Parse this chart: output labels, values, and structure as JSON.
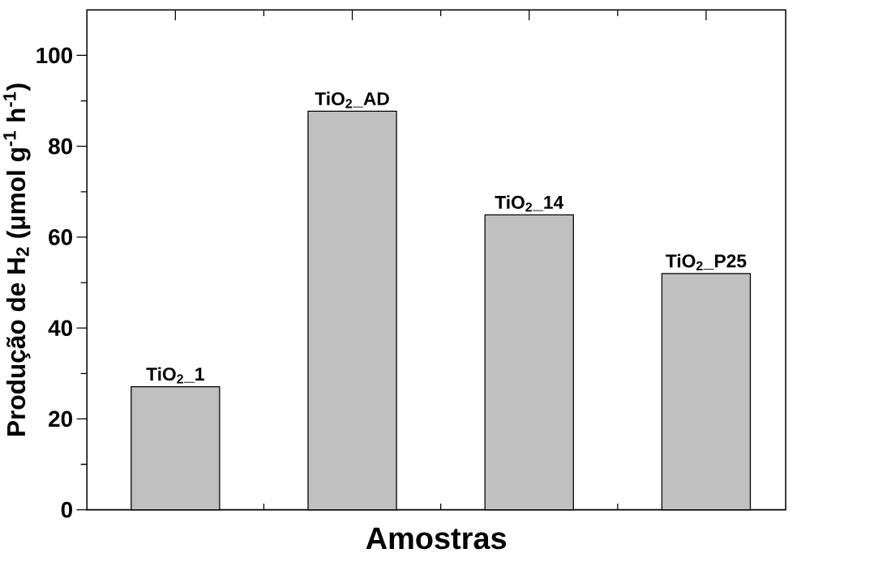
{
  "chart_data": {
    "type": "bar",
    "xlabel": "Amostras",
    "ylabel": "Produção de H$_{2}$ (μmol g$^{-1}$ h$^{-1}$)",
    "categories": [
      "TiO$_{2}$_1",
      "TiO$_{2}$_AD",
      "TiO$_{2}$_14",
      "TiO$_{2}$_P25"
    ],
    "values": [
      27.1,
      87.7,
      64.9,
      52.0
    ],
    "color": "#c0c0c0",
    "ylim": [
      0,
      110
    ],
    "yticks": [
      0,
      20,
      40,
      60,
      80,
      100
    ],
    "tick_labels": "y"
  }
}
